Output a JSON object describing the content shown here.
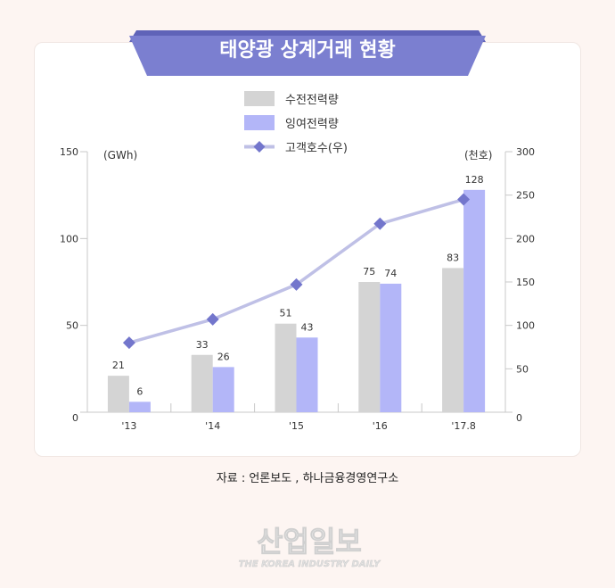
{
  "chart_data": {
    "type": "bar",
    "title": "태양광 상계거래 현황",
    "categories": [
      "'13",
      "'14",
      "'15",
      "'16",
      "'17.8"
    ],
    "series": [
      {
        "name": "수전전력량",
        "type": "bar",
        "axis": "left",
        "color": "#d4d4d4",
        "values": [
          21,
          33,
          51,
          75,
          83
        ]
      },
      {
        "name": "잉여전력량",
        "type": "bar",
        "axis": "left",
        "color": "#b3b6f8",
        "values": [
          6,
          26,
          43,
          74,
          128
        ]
      },
      {
        "name": "고객호수(우)",
        "type": "line",
        "axis": "right",
        "color": "#7376cc",
        "line_color": "#bfc0e6",
        "values": [
          80,
          107,
          147,
          217,
          245
        ]
      }
    ],
    "ylabel_left": "(GWh)",
    "ylabel_right": "(천호)",
    "ylim_left": [
      0,
      150
    ],
    "ylim_right": [
      0,
      300
    ],
    "yticks_left": [
      0,
      50,
      100,
      150
    ],
    "yticks_right": [
      0,
      50,
      100,
      150,
      200,
      250,
      300
    ],
    "grid": false,
    "legend_position": "top-center"
  },
  "source": "자료 : 언론보도 , 하나금융경영연구소",
  "logo": {
    "korean": "산업일보",
    "english": "THE KOREA INDUSTRY DAILY"
  },
  "colors": {
    "banner": "#7b7fd0",
    "background": "#fdf5f2"
  }
}
